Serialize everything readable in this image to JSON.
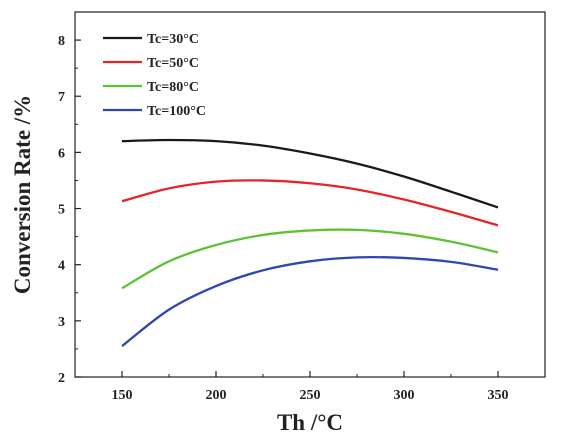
{
  "chart_data": {
    "type": "line",
    "xlabel": "Th /°C",
    "ylabel": "Conversion Rate /%",
    "xlim": [
      125,
      375
    ],
    "ylim": [
      2,
      8.5
    ],
    "xticks": [
      150,
      200,
      250,
      300,
      350
    ],
    "yticks": [
      2,
      3,
      4,
      5,
      6,
      7,
      8
    ],
    "grid": false,
    "legend_position": "top-left",
    "series": [
      {
        "name": "Tc=30°C",
        "color": "#1a1a1a",
        "x": [
          150,
          175,
          200,
          225,
          250,
          275,
          300,
          325,
          350
        ],
        "y": [
          6.2,
          6.22,
          6.2,
          6.12,
          5.98,
          5.8,
          5.57,
          5.3,
          5.02
        ]
      },
      {
        "name": "Tc=50°C",
        "color": "#e8232a",
        "x": [
          150,
          175,
          200,
          225,
          250,
          275,
          300,
          325,
          350
        ],
        "y": [
          5.13,
          5.36,
          5.48,
          5.5,
          5.45,
          5.34,
          5.16,
          4.94,
          4.7
        ]
      },
      {
        "name": "Tc=80°C",
        "color": "#5ec236",
        "x": [
          150,
          175,
          200,
          225,
          250,
          275,
          300,
          325,
          350
        ],
        "y": [
          3.58,
          4.06,
          4.35,
          4.53,
          4.61,
          4.62,
          4.55,
          4.41,
          4.22
        ]
      },
      {
        "name": "Tc=100°C",
        "color": "#2f47b0",
        "x": [
          150,
          175,
          200,
          225,
          250,
          275,
          300,
          325,
          350
        ],
        "y": [
          2.55,
          3.2,
          3.62,
          3.9,
          4.06,
          4.13,
          4.12,
          4.05,
          3.91
        ]
      }
    ]
  }
}
